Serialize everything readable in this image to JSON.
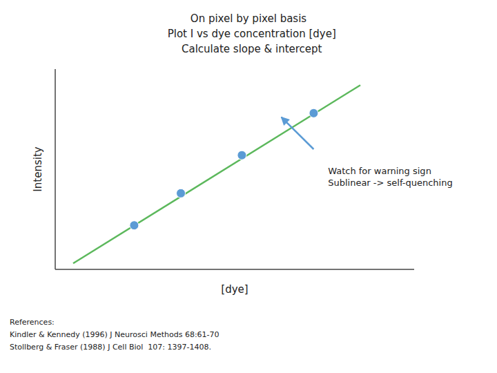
{
  "chart_data": {
    "type": "scatter",
    "title": "On pixel by pixel basis\n  Plot I vs dye concentration [dye]\n  Calculate slope & intercept",
    "x_label": "[dye]",
    "y_label": "Intensity",
    "xlim": [
      0.0,
      1.0
    ],
    "ylim": [
      0.0,
      1.0
    ],
    "xticks": [],
    "yticks": [],
    "tick_labels": false,
    "grid": false,
    "series": [
      {
        "type": "line",
        "color": "#5cb85c",
        "x": [
          0.05,
          0.85
        ],
        "values": [
          0.03,
          0.92
        ]
      },
      {
        "type": "scatter",
        "color": "#5b9bd5",
        "x": [
          0.22,
          0.35,
          0.52,
          0.72
        ],
        "values": [
          0.22,
          0.38,
          0.57,
          0.78
        ]
      }
    ],
    "annotations": [
      {
        "text": "Watch for warning sign\nSublinear -> self-quenching",
        "x": 0.76,
        "y": 0.52
      },
      {
        "type": "arrow",
        "color": "#5b9bd5",
        "x": 0.72,
        "y": 0.6,
        "x_end": 0.63,
        "y_end": 0.76
      }
    ],
    "footnote": "References:\nKindler & Kennedy (1996) J Neurosci Methods 68:61-70\nStollberg & Fraser (1988) J Cell Biol  107: 1397-1408."
  }
}
